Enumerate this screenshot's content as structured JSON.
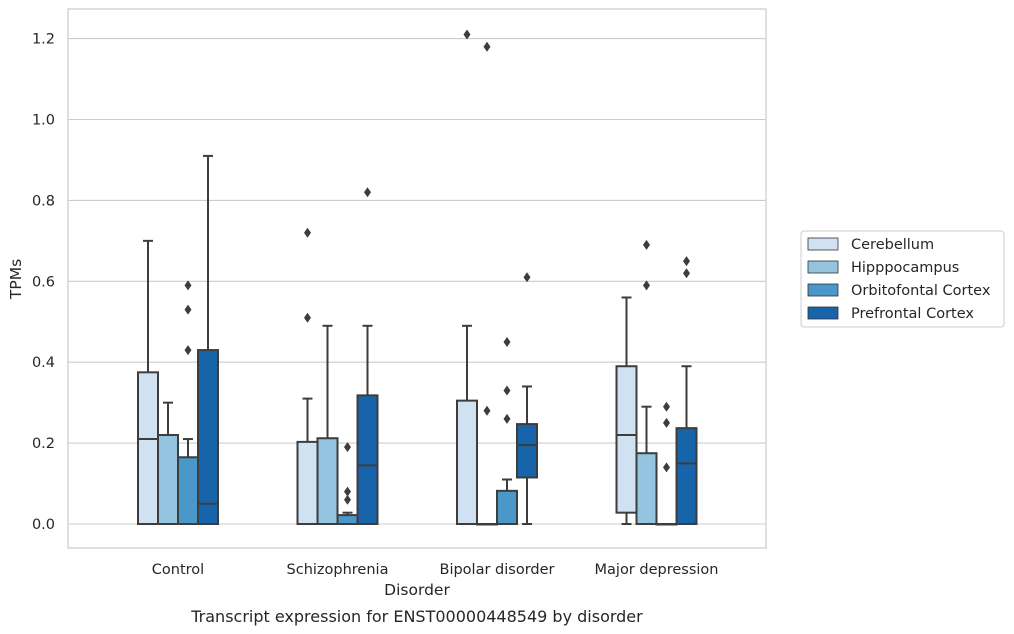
{
  "chart_data": {
    "type": "box",
    "caption": "Transcript expression for ENST00000448549 by disorder",
    "xlabel": "Disorder",
    "ylabel": "TPMs",
    "ylim": [
      -0.06,
      1.27
    ],
    "yticks": [
      "0.0",
      "0.2",
      "0.4",
      "0.6",
      "0.8",
      "1.0",
      "1.2"
    ],
    "ytick_values": [
      0.0,
      0.2,
      0.4,
      0.6,
      0.8,
      1.0,
      1.2
    ],
    "grid": "horizontal",
    "legend_position": "right",
    "categories": [
      "Control",
      "Schizophrenia",
      "Bipolar disorder",
      "Major depression"
    ],
    "series": [
      {
        "name": "Cerebellum",
        "color": "#d0e1f2",
        "boxes": [
          {
            "whislo": 0.0,
            "q1": 0.0,
            "med": 0.21,
            "q3": 0.375,
            "whishi": 0.7,
            "fliers": []
          },
          {
            "whislo": 0.0,
            "q1": 0.0,
            "med": 0.0,
            "q3": 0.203,
            "whishi": 0.31,
            "fliers": [
              0.72,
              0.51
            ]
          },
          {
            "whislo": 0.0,
            "q1": 0.0,
            "med": 0.0,
            "q3": 0.305,
            "whishi": 0.49,
            "fliers": [
              1.21
            ]
          },
          {
            "whislo": 0.0,
            "q1": 0.028,
            "med": 0.22,
            "q3": 0.39,
            "whishi": 0.56,
            "fliers": []
          }
        ]
      },
      {
        "name": "Hipppocampus",
        "color": "#94c4df",
        "boxes": [
          {
            "whislo": 0.0,
            "q1": 0.0,
            "med": 0.0,
            "q3": 0.22,
            "whishi": 0.3,
            "fliers": []
          },
          {
            "whislo": 0.0,
            "q1": 0.0,
            "med": 0.0,
            "q3": 0.212,
            "whishi": 0.49,
            "fliers": []
          },
          {
            "whislo": 0.0,
            "q1": 0.0,
            "med": 0.0,
            "q3": 0.0,
            "whishi": 0.0,
            "fliers": [
              1.18,
              0.28
            ]
          },
          {
            "whislo": 0.0,
            "q1": 0.0,
            "med": 0.0,
            "q3": 0.175,
            "whishi": 0.29,
            "fliers": [
              0.69,
              0.59
            ]
          }
        ]
      },
      {
        "name": "Orbitofontal Cortex",
        "color": "#4a98c9",
        "boxes": [
          {
            "whislo": 0.0,
            "q1": 0.0,
            "med": 0.0,
            "q3": 0.165,
            "whishi": 0.21,
            "fliers": [
              0.59,
              0.53,
              0.43
            ]
          },
          {
            "whislo": 0.0,
            "q1": 0.0,
            "med": 0.0,
            "q3": 0.022,
            "whishi": 0.028,
            "fliers": [
              0.19,
              0.08,
              0.06
            ]
          },
          {
            "whislo": 0.0,
            "q1": 0.0,
            "med": 0.0,
            "q3": 0.082,
            "whishi": 0.11,
            "fliers": [
              0.45,
              0.33,
              0.26
            ]
          },
          {
            "whislo": 0.0,
            "q1": 0.0,
            "med": 0.0,
            "q3": 0.0,
            "whishi": 0.0,
            "fliers": [
              0.29,
              0.25,
              0.14
            ]
          }
        ]
      },
      {
        "name": "Prefrontal Cortex",
        "color": "#1764ab",
        "boxes": [
          {
            "whislo": 0.0,
            "q1": 0.0,
            "med": 0.05,
            "q3": 0.43,
            "whishi": 0.91,
            "fliers": []
          },
          {
            "whislo": 0.0,
            "q1": 0.0,
            "med": 0.145,
            "q3": 0.318,
            "whishi": 0.49,
            "fliers": [
              0.82
            ]
          },
          {
            "whislo": 0.0,
            "q1": 0.115,
            "med": 0.195,
            "q3": 0.247,
            "whishi": 0.34,
            "fliers": [
              0.61
            ]
          },
          {
            "whislo": 0.0,
            "q1": 0.0,
            "med": 0.15,
            "q3": 0.237,
            "whishi": 0.39,
            "fliers": [
              0.65,
              0.62
            ]
          }
        ]
      }
    ]
  }
}
